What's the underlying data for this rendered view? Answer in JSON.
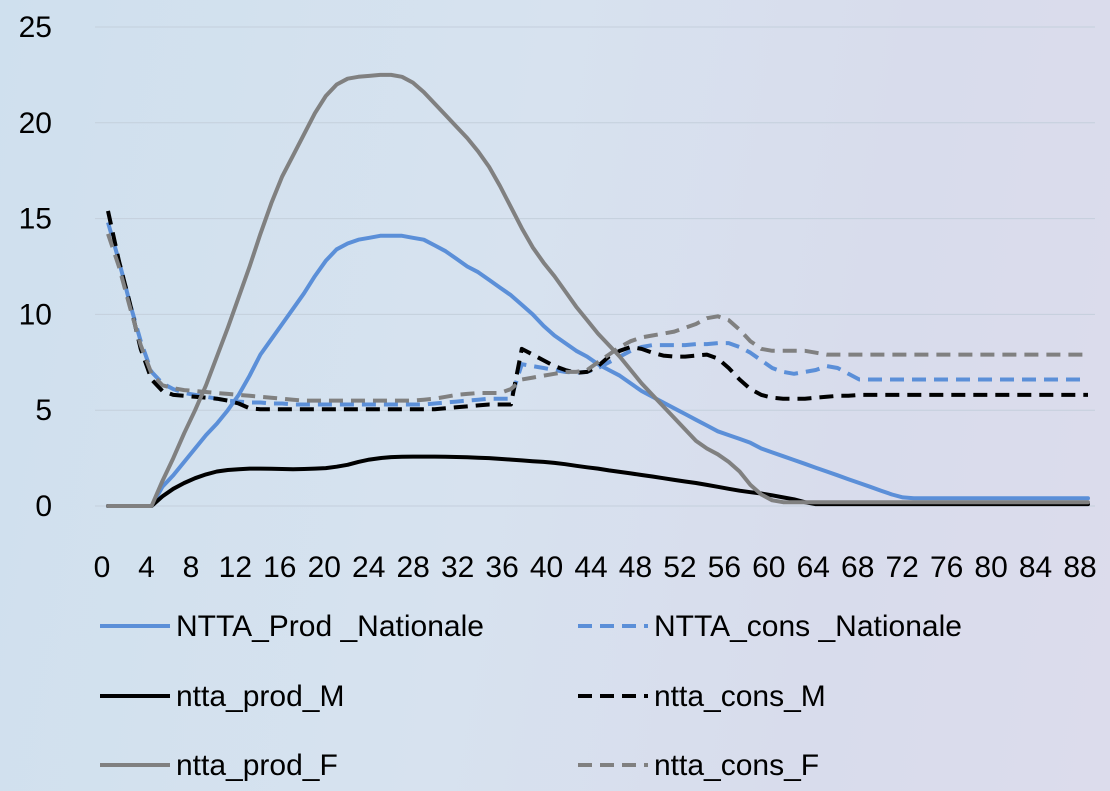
{
  "chart_data": {
    "type": "line",
    "title": "",
    "xlabel": "",
    "ylabel": "",
    "ylim": [
      0,
      25
    ],
    "yticks": [
      0,
      5,
      10,
      15,
      20,
      25
    ],
    "grid": "horizontal",
    "legend_position": "bottom",
    "x": [
      0,
      1,
      2,
      3,
      4,
      5,
      6,
      7,
      8,
      9,
      10,
      11,
      12,
      13,
      14,
      15,
      16,
      17,
      18,
      19,
      20,
      21,
      22,
      23,
      24,
      25,
      26,
      27,
      28,
      29,
      30,
      31,
      32,
      33,
      34,
      35,
      36,
      37,
      38,
      39,
      40,
      41,
      42,
      43,
      44,
      45,
      46,
      47,
      48,
      49,
      50,
      51,
      52,
      53,
      54,
      55,
      56,
      57,
      58,
      59,
      60,
      61,
      62,
      63,
      64,
      65,
      66,
      67,
      68,
      69,
      70,
      71,
      72,
      73,
      74,
      75,
      76,
      77,
      78,
      79,
      80,
      81,
      82,
      83,
      84,
      85,
      86,
      87,
      88,
      89,
      90
    ],
    "xtick_labels": [
      "0",
      "4",
      "8",
      "12",
      "16",
      "20",
      "24",
      "28",
      "32",
      "36",
      "40",
      "44",
      "48",
      "52",
      "56",
      "60",
      "64",
      "68",
      "72",
      "76",
      "80",
      "84",
      "88"
    ],
    "series": [
      {
        "name": "NTTA_Prod _Nationale",
        "color": "#5b8fd8",
        "dash": "solid",
        "values": [
          0.0,
          0.0,
          0.0,
          0.0,
          0.0,
          1.0,
          1.6,
          2.3,
          3.0,
          3.7,
          4.3,
          5.0,
          5.8,
          6.8,
          7.9,
          8.7,
          9.5,
          10.3,
          11.1,
          12.0,
          12.8,
          13.4,
          13.7,
          13.9,
          14.0,
          14.1,
          14.1,
          14.1,
          14.0,
          13.9,
          13.6,
          13.3,
          12.9,
          12.5,
          12.2,
          11.8,
          11.4,
          11.0,
          10.5,
          10.0,
          9.4,
          8.9,
          8.5,
          8.1,
          7.8,
          7.4,
          7.1,
          6.8,
          6.4,
          6.0,
          5.7,
          5.4,
          5.1,
          4.8,
          4.5,
          4.2,
          3.9,
          3.7,
          3.5,
          3.3,
          3.0,
          2.8,
          2.6,
          2.4,
          2.2,
          2.0,
          1.8,
          1.6,
          1.4,
          1.2,
          1.0,
          0.8,
          0.6,
          0.45,
          0.4,
          0.4,
          0.4,
          0.4,
          0.4,
          0.4,
          0.4,
          0.4,
          0.4,
          0.4,
          0.4,
          0.4,
          0.4,
          0.4,
          0.4,
          0.4,
          0.4
        ]
      },
      {
        "name": "NTTA_cons _Nationale",
        "color": "#5b8fd8",
        "dash": "dashed",
        "values": [
          14.8,
          12.8,
          10.6,
          8.6,
          7.0,
          6.4,
          6.1,
          5.9,
          5.8,
          5.7,
          5.6,
          5.5,
          5.45,
          5.4,
          5.4,
          5.35,
          5.35,
          5.3,
          5.3,
          5.3,
          5.3,
          5.3,
          5.3,
          5.3,
          5.3,
          5.3,
          5.3,
          5.3,
          5.3,
          5.3,
          5.35,
          5.4,
          5.45,
          5.5,
          5.55,
          5.6,
          5.6,
          5.6,
          7.4,
          7.3,
          7.2,
          7.1,
          7.0,
          6.95,
          7.0,
          7.2,
          7.5,
          7.8,
          8.1,
          8.3,
          8.4,
          8.4,
          8.4,
          8.4,
          8.45,
          8.45,
          8.5,
          8.5,
          8.3,
          8.0,
          7.6,
          7.2,
          7.0,
          6.9,
          7.0,
          7.1,
          7.3,
          7.2,
          6.9,
          6.6,
          6.6,
          6.6,
          6.6,
          6.6,
          6.6,
          6.6,
          6.6,
          6.6,
          6.6,
          6.6,
          6.6,
          6.6,
          6.6,
          6.6,
          6.6,
          6.6,
          6.6,
          6.6,
          6.6,
          6.6,
          6.6
        ]
      },
      {
        "name": "ntta_prod_M",
        "color": "#000000",
        "dash": "solid",
        "values": [
          0.0,
          0.0,
          0.0,
          0.0,
          0.0,
          0.5,
          0.9,
          1.2,
          1.45,
          1.65,
          1.8,
          1.88,
          1.92,
          1.95,
          1.95,
          1.94,
          1.93,
          1.92,
          1.93,
          1.95,
          1.98,
          2.05,
          2.15,
          2.3,
          2.42,
          2.5,
          2.55,
          2.57,
          2.58,
          2.58,
          2.58,
          2.57,
          2.56,
          2.54,
          2.52,
          2.5,
          2.46,
          2.42,
          2.38,
          2.34,
          2.3,
          2.25,
          2.18,
          2.1,
          2.02,
          1.95,
          1.86,
          1.78,
          1.7,
          1.62,
          1.54,
          1.45,
          1.36,
          1.28,
          1.2,
          1.1,
          1.0,
          0.9,
          0.8,
          0.72,
          0.65,
          0.56,
          0.45,
          0.35,
          0.2,
          0.1,
          0.1,
          0.1,
          0.1,
          0.1,
          0.1,
          0.1,
          0.1,
          0.1,
          0.1,
          0.1,
          0.1,
          0.1,
          0.1,
          0.1,
          0.1,
          0.1,
          0.1,
          0.1,
          0.1,
          0.1,
          0.1,
          0.1,
          0.1,
          0.1,
          0.1
        ]
      },
      {
        "name": "ntta_cons_M",
        "color": "#000000",
        "dash": "dashed",
        "values": [
          15.4,
          12.8,
          10.6,
          8.2,
          6.6,
          6.0,
          5.8,
          5.75,
          5.7,
          5.65,
          5.6,
          5.5,
          5.35,
          5.1,
          5.05,
          5.05,
          5.05,
          5.05,
          5.05,
          5.05,
          5.05,
          5.05,
          5.05,
          5.05,
          5.05,
          5.05,
          5.05,
          5.05,
          5.05,
          5.05,
          5.05,
          5.1,
          5.15,
          5.2,
          5.25,
          5.3,
          5.3,
          5.3,
          8.2,
          7.9,
          7.6,
          7.3,
          7.1,
          6.95,
          7.0,
          7.3,
          7.8,
          8.1,
          8.3,
          8.2,
          8.0,
          7.85,
          7.8,
          7.8,
          7.85,
          7.9,
          7.7,
          7.2,
          6.6,
          6.1,
          5.8,
          5.65,
          5.6,
          5.6,
          5.6,
          5.65,
          5.7,
          5.75,
          5.75,
          5.8,
          5.8,
          5.8,
          5.8,
          5.8,
          5.8,
          5.8,
          5.8,
          5.8,
          5.8,
          5.8,
          5.8,
          5.8,
          5.8,
          5.8,
          5.8,
          5.8,
          5.8,
          5.8,
          5.8,
          5.8,
          5.8
        ]
      },
      {
        "name": "ntta_prod_F",
        "color": "#808080",
        "dash": "solid",
        "values": [
          0.0,
          0.0,
          0.0,
          0.0,
          0.0,
          1.3,
          2.5,
          3.8,
          5.0,
          6.3,
          7.8,
          9.3,
          10.9,
          12.5,
          14.2,
          15.8,
          17.2,
          18.3,
          19.4,
          20.5,
          21.4,
          22.0,
          22.3,
          22.4,
          22.45,
          22.5,
          22.5,
          22.4,
          22.1,
          21.6,
          21.0,
          20.4,
          19.8,
          19.2,
          18.5,
          17.7,
          16.7,
          15.6,
          14.5,
          13.5,
          12.7,
          12.0,
          11.2,
          10.4,
          9.7,
          9.0,
          8.4,
          7.8,
          7.1,
          6.4,
          5.8,
          5.2,
          4.6,
          4.0,
          3.4,
          3.0,
          2.7,
          2.3,
          1.8,
          1.1,
          0.6,
          0.3,
          0.2,
          0.2,
          0.2,
          0.2,
          0.2,
          0.2,
          0.2,
          0.2,
          0.2,
          0.2,
          0.2,
          0.2,
          0.2,
          0.2,
          0.2,
          0.2,
          0.2,
          0.2,
          0.2,
          0.2,
          0.2,
          0.2,
          0.2,
          0.2,
          0.2,
          0.2,
          0.2,
          0.2,
          0.2
        ]
      },
      {
        "name": "ntta_cons_F",
        "color": "#808080",
        "dash": "dashed",
        "values": [
          14.2,
          12.5,
          10.4,
          8.4,
          6.9,
          6.3,
          6.15,
          6.05,
          6.0,
          5.95,
          5.9,
          5.85,
          5.8,
          5.75,
          5.7,
          5.65,
          5.6,
          5.55,
          5.5,
          5.5,
          5.5,
          5.5,
          5.5,
          5.5,
          5.5,
          5.5,
          5.5,
          5.5,
          5.5,
          5.55,
          5.6,
          5.7,
          5.8,
          5.85,
          5.9,
          5.9,
          5.9,
          6.1,
          6.6,
          6.7,
          6.8,
          6.9,
          7.0,
          7.0,
          7.1,
          7.5,
          7.9,
          8.3,
          8.6,
          8.8,
          8.9,
          9.0,
          9.1,
          9.3,
          9.5,
          9.8,
          9.9,
          9.7,
          9.2,
          8.6,
          8.2,
          8.1,
          8.1,
          8.1,
          8.1,
          8.0,
          7.9,
          7.9,
          7.9,
          7.9,
          7.9,
          7.9,
          7.9,
          7.9,
          7.9,
          7.9,
          7.9,
          7.9,
          7.9,
          7.9,
          7.9,
          7.9,
          7.9,
          7.9,
          7.9,
          7.9,
          7.9,
          7.9,
          7.9,
          7.9,
          7.9
        ]
      }
    ]
  }
}
